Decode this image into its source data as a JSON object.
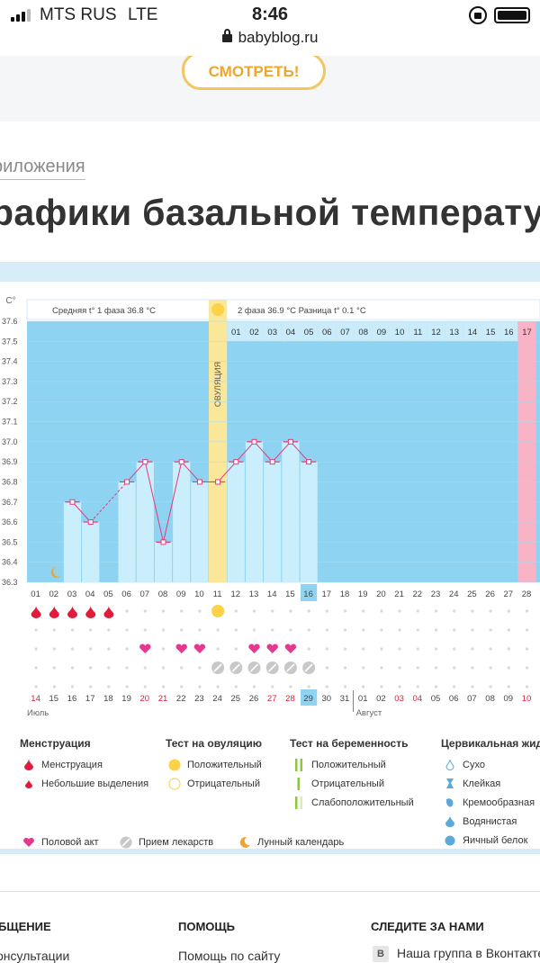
{
  "status_bar": {
    "carrier": "MTS RUS",
    "network": "LTE",
    "time": "8:46"
  },
  "url_bar": {
    "domain": "babyblog.ru"
  },
  "banner": {
    "button_label": "СМОТРЕТЬ!"
  },
  "breadcrumb": "риложения",
  "page_title": "рафики базальной температур",
  "chart_data": {
    "type": "line",
    "unit_label": "C°",
    "ylim": [
      36.3,
      37.6
    ],
    "y_ticks": [
      "37.6",
      "37.5",
      "37.4",
      "37.3",
      "37.2",
      "37.1",
      "37.0",
      "36.9",
      "36.8",
      "36.7",
      "36.6",
      "36.5",
      "36.4",
      "36.3"
    ],
    "cycle_days": [
      "01",
      "02",
      "03",
      "04",
      "05",
      "06",
      "07",
      "08",
      "09",
      "10",
      "11",
      "12",
      "13",
      "14",
      "15",
      "16",
      "17",
      "18",
      "19",
      "20",
      "21",
      "22",
      "23",
      "24",
      "25",
      "26",
      "27",
      "28"
    ],
    "highlighted_cycle_day": "16",
    "phase2_days": [
      "01",
      "02",
      "03",
      "04",
      "05",
      "06",
      "07",
      "08",
      "09",
      "10",
      "11",
      "12",
      "13",
      "14",
      "15",
      "16",
      "17"
    ],
    "calendar_dates": [
      "14",
      "15",
      "16",
      "17",
      "18",
      "19",
      "20",
      "21",
      "22",
      "23",
      "24",
      "25",
      "26",
      "27",
      "28",
      "29",
      "30",
      "31",
      "01",
      "02",
      "03",
      "04",
      "05",
      "06",
      "07",
      "08",
      "09",
      "10"
    ],
    "red_dates": [
      "14",
      "20",
      "21",
      "27",
      "28",
      "03",
      "04",
      "10"
    ],
    "highlighted_date": "29",
    "month_labels": [
      "Июль",
      "Август"
    ],
    "series": [
      {
        "values": [
          null,
          null,
          36.7,
          36.6,
          null,
          36.8,
          36.9,
          36.5,
          36.9,
          36.8,
          36.8,
          36.9,
          37.0,
          36.9,
          37.0,
          36.9,
          null,
          null,
          null,
          null,
          null,
          null,
          null,
          null,
          null,
          null,
          null,
          null
        ]
      }
    ],
    "ovulation_day": 11,
    "ovulation_label": "ОВУЛЯЦИЯ",
    "menstruation_days": [
      1,
      2,
      3,
      4,
      5
    ],
    "intercourse_days": [
      7,
      9,
      10,
      13,
      14,
      15
    ],
    "medication_days": [
      11,
      12,
      13,
      14,
      15,
      16
    ],
    "ovulation_test_days": [
      11
    ],
    "moon_day": 2,
    "period_marker_day": 28,
    "phase1": {
      "label": "Средняя t° 1 фаза",
      "value": "36.8 °C"
    },
    "phase2": {
      "label": "2 фаза",
      "value": "36.9 °C"
    },
    "difference": {
      "label": "Разница t°",
      "value": "0.1 °C"
    }
  },
  "legend": {
    "menstruation": {
      "title": "Менструация",
      "items": [
        "Менструация",
        "Небольшие выделения"
      ]
    },
    "ovulation_test": {
      "title": "Тест на овуляцию",
      "items": [
        "Положительный",
        "Отрицательный"
      ]
    },
    "pregnancy_test": {
      "title": "Тест на беременность",
      "items": [
        "Положительный",
        "Отрицательный",
        "Слабоположительный"
      ]
    },
    "cervical": {
      "title": "Цервикальная жидк",
      "items": [
        "Сухо",
        "Клейкая",
        "Кремообразная",
        "Водянистая",
        "Яичный белок"
      ]
    },
    "bottom": [
      "Половой акт",
      "Прием лекарств",
      "Лунный календарь"
    ]
  },
  "colors": {
    "sky": "#8fd3f2",
    "bar": "#cbeefc",
    "line": "#e5397a",
    "ovulation": "#fbe79a",
    "period": "#f8b3c6",
    "grid_dot": "#d9d9d9",
    "red": "#e01b3c"
  },
  "footer": {
    "columns": [
      {
        "title": "БЩЕНИЕ",
        "link": "онсультации"
      },
      {
        "title": "ПОМОЩЬ",
        "link": "Помощь по сайту"
      },
      {
        "title": "СЛЕДИТЕ ЗА НАМИ",
        "link": "Наша группа в Вконтакте"
      }
    ]
  }
}
